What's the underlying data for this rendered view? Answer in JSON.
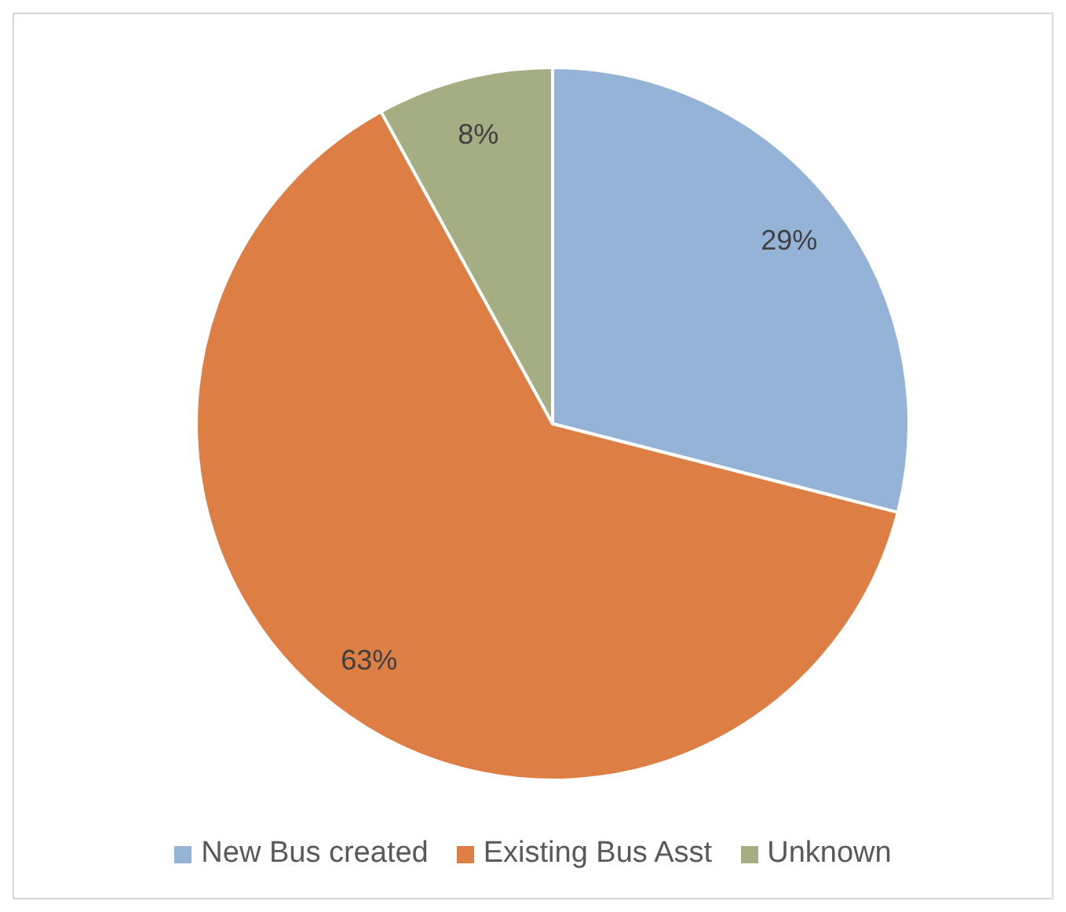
{
  "chart_data": {
    "type": "pie",
    "categories": [
      "New Bus created",
      "Existing Bus Asst",
      "Unknown"
    ],
    "values": [
      29,
      63,
      8
    ],
    "colors": [
      "#95b3d7",
      "#dd7f45",
      "#a5ad82"
    ],
    "value_labels": [
      "29%",
      "63%",
      "8%"
    ],
    "legend": "bottom"
  }
}
